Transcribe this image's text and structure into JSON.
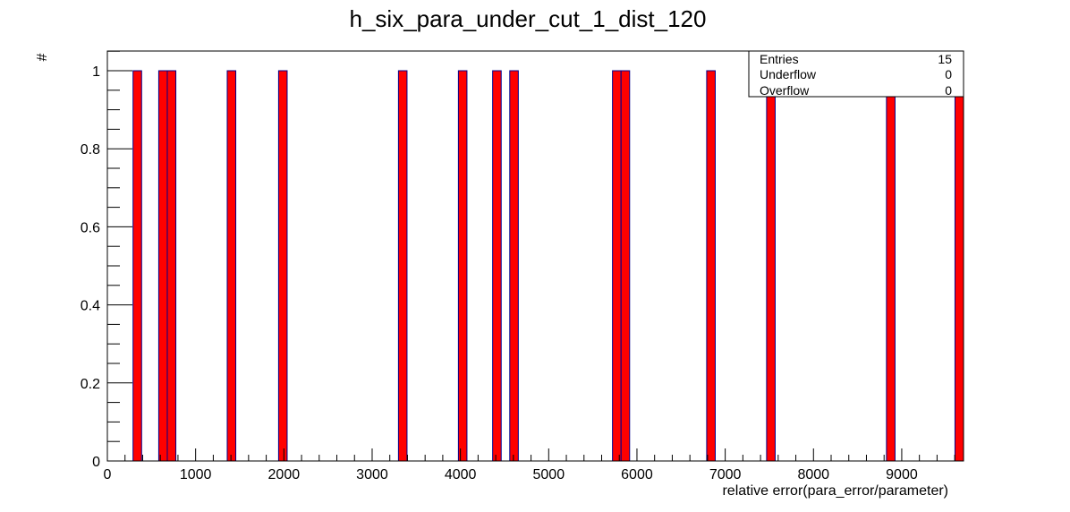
{
  "chart_data": {
    "type": "bar",
    "title": "h_six_para_under_cut_1_dist_120",
    "xlabel": "relative error(para_error/parameter)",
    "ylabel": "#",
    "xlim": [
      0,
      9700
    ],
    "ylim": [
      0,
      1.05
    ],
    "x_ticks": [
      "0",
      "1000",
      "2000",
      "3000",
      "4000",
      "5000",
      "6000",
      "7000",
      "8000",
      "9000"
    ],
    "y_ticks": [
      "0",
      "0.2",
      "0.4",
      "0.6",
      "0.8",
      "1"
    ],
    "bin_width": 97,
    "bins": [
      {
        "x_low": 291,
        "x_high": 388,
        "value": 1
      },
      {
        "x_low": 582,
        "x_high": 679,
        "value": 1
      },
      {
        "x_low": 679,
        "x_high": 776,
        "value": 1
      },
      {
        "x_low": 1358,
        "x_high": 1455,
        "value": 1
      },
      {
        "x_low": 1940,
        "x_high": 2037,
        "value": 1
      },
      {
        "x_low": 3298,
        "x_high": 3395,
        "value": 1
      },
      {
        "x_low": 3977,
        "x_high": 4074,
        "value": 1
      },
      {
        "x_low": 4365,
        "x_high": 4462,
        "value": 1
      },
      {
        "x_low": 4559,
        "x_high": 4656,
        "value": 1
      },
      {
        "x_low": 5723,
        "x_high": 5820,
        "value": 1
      },
      {
        "x_low": 5820,
        "x_high": 5917,
        "value": 1
      },
      {
        "x_low": 6790,
        "x_high": 6887,
        "value": 1
      },
      {
        "x_low": 7469,
        "x_high": 7566,
        "value": 1
      },
      {
        "x_low": 8827,
        "x_high": 8924,
        "value": 1
      },
      {
        "x_low": 9603,
        "x_high": 9700,
        "value": 1
      }
    ],
    "bar_color": "#ff0000",
    "bar_edge_color": "#00008b",
    "grid": false,
    "legend": "none",
    "stats_box": {
      "position": "top-right",
      "rows": [
        {
          "label": "Entries",
          "value": "15"
        },
        {
          "label": "Underflow",
          "value": "0"
        },
        {
          "label": "Overflow",
          "value": "0"
        }
      ]
    }
  }
}
